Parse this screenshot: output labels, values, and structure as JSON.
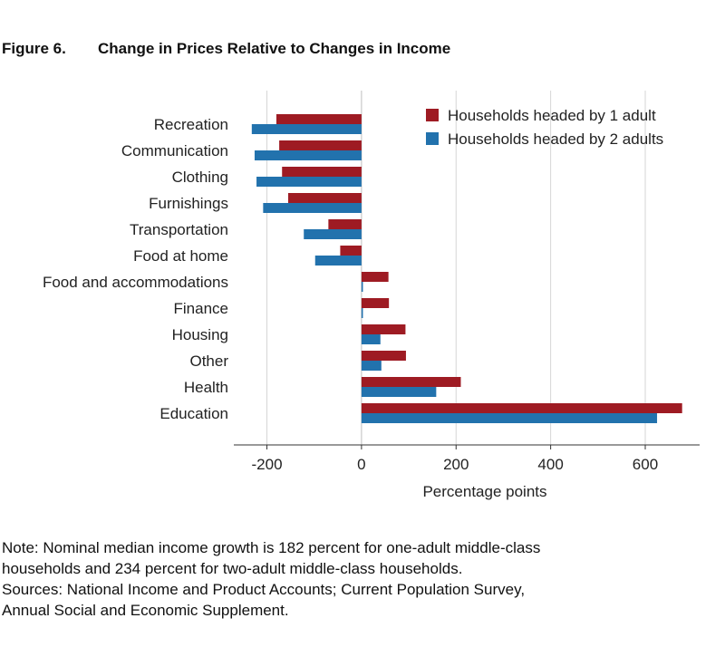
{
  "figure": {
    "number": "Figure 6.",
    "title": "Change in Prices Relative to Changes in Income"
  },
  "chart_data": {
    "type": "bar",
    "orientation": "horizontal",
    "categories": [
      "Recreation",
      "Communication",
      "Clothing",
      "Furnishings",
      "Transportation",
      "Food at home",
      "Food and accommodations",
      "Finance",
      "Housing",
      "Other",
      "Health",
      "Education"
    ],
    "series": [
      {
        "name": "Households headed by 1 adult",
        "color": "#9e1b23",
        "values": [
          -180,
          -174,
          -168,
          -155,
          -70,
          -45,
          57,
          58,
          93,
          94,
          210,
          678
        ]
      },
      {
        "name": "Households headed by 2 adults",
        "color": "#2272ad",
        "values": [
          -232,
          -226,
          -222,
          -208,
          -122,
          -98,
          3,
          3,
          40,
          42,
          158,
          625
        ]
      }
    ],
    "xlabel": "Percentage points",
    "ylabel": "",
    "xlim": [
      -270,
      715
    ],
    "xticks": [
      -200,
      0,
      200,
      400,
      600
    ],
    "xtick_labels": [
      "-200",
      "0",
      "200",
      "400",
      "600"
    ],
    "grid": true,
    "legend_position": "top-right"
  },
  "notes": [
    "Note: Nominal median income growth is 182 percent for one-adult middle-class",
    "households and 234 percent for two-adult middle-class households.",
    "Sources: National Income and Product Accounts; Current Population Survey,",
    "Annual Social and Economic Supplement."
  ]
}
